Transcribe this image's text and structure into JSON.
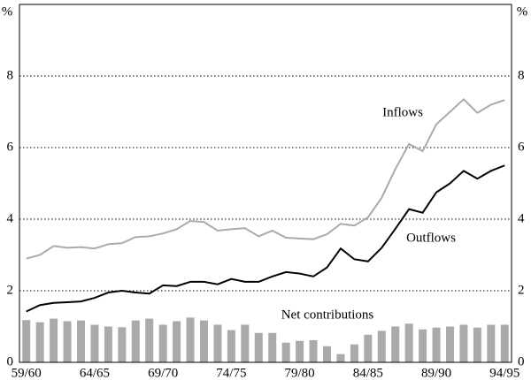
{
  "chart_data": {
    "type": "line",
    "y_label": "%",
    "categories": [
      "59/60",
      null,
      null,
      null,
      null,
      "64/65",
      null,
      null,
      null,
      null,
      "69/70",
      null,
      null,
      null,
      null,
      "74/75",
      null,
      null,
      null,
      null,
      "79/80",
      null,
      null,
      null,
      null,
      "84/85",
      null,
      null,
      null,
      null,
      "89/90",
      null,
      null,
      null,
      null,
      "94/95"
    ],
    "series": [
      {
        "name": "Inflows",
        "type": "line",
        "color": "#aaaaaa",
        "values": [
          2.9,
          3.0,
          3.25,
          3.2,
          3.22,
          3.18,
          3.3,
          3.33,
          3.5,
          3.52,
          3.6,
          3.72,
          3.95,
          3.92,
          3.68,
          3.72,
          3.75,
          3.52,
          3.68,
          3.48,
          3.46,
          3.44,
          3.58,
          3.87,
          3.82,
          4.05,
          4.6,
          5.4,
          6.1,
          5.9,
          6.65,
          7.0,
          7.35,
          6.97,
          7.2,
          7.33
        ]
      },
      {
        "name": "Outflows",
        "type": "line",
        "color": "#000000",
        "values": [
          1.42,
          1.6,
          1.66,
          1.68,
          1.7,
          1.8,
          1.95,
          2.0,
          1.95,
          1.92,
          2.15,
          2.13,
          2.25,
          2.25,
          2.18,
          2.33,
          2.25,
          2.25,
          2.4,
          2.52,
          2.48,
          2.4,
          2.65,
          3.18,
          2.88,
          2.82,
          3.2,
          3.73,
          4.28,
          4.18,
          4.75,
          5.0,
          5.35,
          5.13,
          5.35,
          5.5
        ]
      },
      {
        "name": "Net contributions",
        "type": "bar",
        "color": "#aaaaaa",
        "values": [
          1.18,
          1.12,
          1.22,
          1.15,
          1.17,
          1.05,
          1.0,
          0.98,
          1.17,
          1.22,
          1.05,
          1.15,
          1.25,
          1.17,
          1.05,
          0.9,
          1.05,
          0.82,
          0.82,
          0.55,
          0.6,
          0.62,
          0.45,
          0.23,
          0.5,
          0.77,
          0.88,
          1.0,
          1.08,
          0.92,
          0.97,
          1.0,
          1.05,
          0.97,
          1.05,
          1.05
        ]
      }
    ],
    "ylim": [
      0,
      10
    ],
    "yticks": [
      0,
      2,
      4,
      6,
      8
    ],
    "grid": true
  }
}
